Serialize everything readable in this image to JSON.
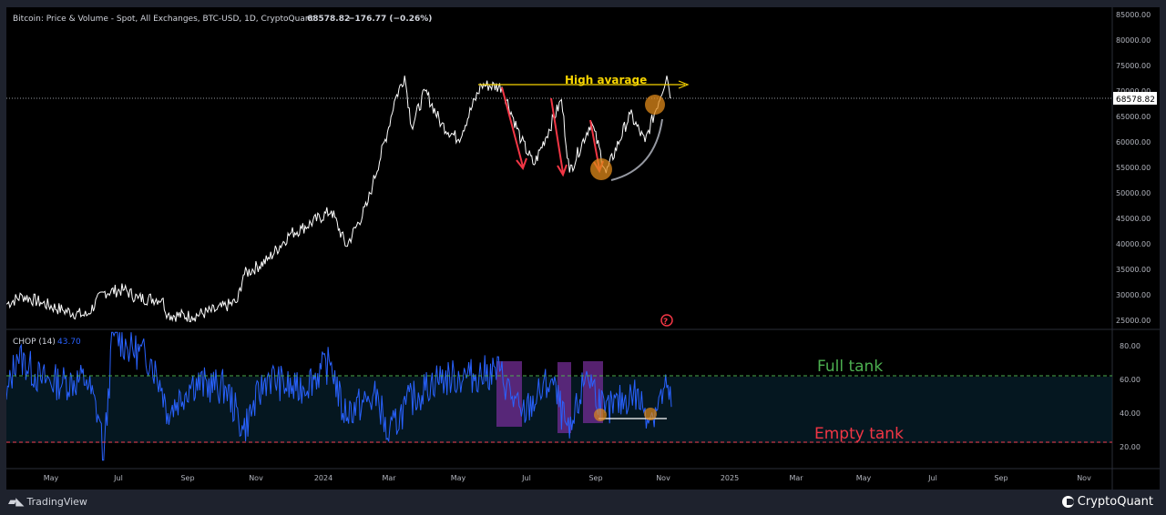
{
  "header": {
    "title": "Bitcoin: Price & Volume - Spot, All Exchanges, BTC-USD, 1D, CryptoQuant",
    "last_price": "68578.82",
    "change": "−176.77 (−0.26%)"
  },
  "price_tag": "68578.82",
  "indicator": {
    "name": "CHOP (14)",
    "value": "43.70"
  },
  "annotations": {
    "high_average": "High avarage",
    "full_tank": "Full tank",
    "empty_tank": "Empty tank"
  },
  "footer": {
    "tradingview": "TradingView",
    "cryptoquant": "CryptoQuant"
  },
  "colors": {
    "price_line": "#ffffff",
    "chop_line": "#2962ff",
    "high_avg": "#f5d300",
    "full_tank": "#4caf50",
    "empty_tank": "#f23645",
    "arrow_red": "#f23645",
    "highlight_box": "#7b2f9e",
    "circle": "#e08a1a"
  },
  "chart_data": [
    {
      "type": "line",
      "title": "Bitcoin: Price & Volume - Spot, All Exchanges, BTC-USD, 1D, CryptoQuant",
      "x_ticks": [
        "May",
        "Jul",
        "Sep",
        "Nov",
        "2024",
        "Mar",
        "May",
        "Jul",
        "Sep",
        "Nov",
        "2025",
        "Mar",
        "May",
        "Jul",
        "Sep",
        "Nov"
      ],
      "y_ticks": [
        "85000.00",
        "80000.00",
        "75000.00",
        "70000.00",
        "65000.00",
        "60000.00",
        "55000.00",
        "50000.00",
        "45000.00",
        "40000.00",
        "35000.00",
        "30000.00",
        "25000.00"
      ],
      "ylim": [
        25000,
        85000
      ],
      "series": [
        {
          "values": [
            [
              "2023-04-01",
              28200
            ],
            [
              "2023-04-15",
              29800
            ],
            [
              "2023-05-01",
              28500
            ],
            [
              "2023-05-20",
              27000
            ],
            [
              "2023-06-10",
              25900
            ],
            [
              "2023-06-25",
              30500
            ],
            [
              "2023-07-13",
              31000
            ],
            [
              "2023-07-25",
              29300
            ],
            [
              "2023-08-15",
              29200
            ],
            [
              "2023-08-20",
              26100
            ],
            [
              "2023-09-10",
              25800
            ],
            [
              "2023-10-01",
              27000
            ],
            [
              "2023-10-20",
              28700
            ],
            [
              "2023-10-25",
              33900
            ],
            [
              "2023-11-15",
              36800
            ],
            [
              "2023-12-05",
              42000
            ],
            [
              "2023-12-15",
              43000
            ],
            [
              "2024-01-10",
              46500
            ],
            [
              "2024-01-23",
              39500
            ],
            [
              "2024-02-10",
              47500
            ],
            [
              "2024-02-15",
              51700
            ],
            [
              "2024-02-28",
              62000
            ],
            [
              "2024-03-05",
              68000
            ],
            [
              "2024-03-14",
              73000
            ],
            [
              "2024-03-20",
              63000
            ],
            [
              "2024-04-01",
              70000
            ],
            [
              "2024-04-15",
              63500
            ],
            [
              "2024-04-30",
              60500
            ],
            [
              "2024-05-20",
              71200
            ],
            [
              "2024-06-07",
              70800
            ],
            [
              "2024-06-24",
              60300
            ],
            [
              "2024-07-05",
              55500
            ],
            [
              "2024-07-29",
              68300
            ],
            [
              "2024-08-05",
              54000
            ],
            [
              "2024-08-24",
              64000
            ],
            [
              "2024-09-06",
              53900
            ],
            [
              "2024-09-27",
              65500
            ],
            [
              "2024-10-10",
              60000
            ],
            [
              "2024-10-29",
              73000
            ],
            [
              "2024-11-02",
              68578.82
            ]
          ]
        }
      ],
      "horizontal_lines": [
        {
          "label": "High avarage",
          "y": 71500,
          "x_start": "2024-05-15",
          "x_end": "2024-11-15"
        }
      ],
      "annotations": [
        "High avarage"
      ]
    },
    {
      "type": "line",
      "title": "CHOP (14)",
      "y_ticks": [
        "80.00",
        "60.00",
        "40.00",
        "20.00"
      ],
      "ylim": [
        10,
        90
      ],
      "levels": {
        "upper": 61.8,
        "lower": 38.2,
        "bottom": 23.6
      },
      "series": [
        {
          "values": [
            [
              "2023-04-01",
              48
            ],
            [
              "2023-04-10",
              75
            ],
            [
              "2023-05-01",
              60
            ],
            [
              "2023-05-20",
              58
            ],
            [
              "2023-06-10",
              60
            ],
            [
              "2023-06-22",
              35
            ],
            [
              "2023-06-25",
              12
            ],
            [
              "2023-07-03",
              88
            ],
            [
              "2023-07-15",
              80
            ],
            [
              "2023-08-05",
              72
            ],
            [
              "2023-08-15",
              55
            ],
            [
              "2023-08-20",
              40
            ],
            [
              "2023-09-10",
              58
            ],
            [
              "2023-10-10",
              55
            ],
            [
              "2023-10-25",
              30
            ],
            [
              "2023-11-15",
              62
            ],
            [
              "2023-12-10",
              53
            ],
            [
              "2024-01-10",
              70
            ],
            [
              "2024-01-20",
              40
            ],
            [
              "2024-02-20",
              50
            ],
            [
              "2024-02-28",
              25
            ],
            [
              "2024-03-15",
              45
            ],
            [
              "2024-04-10",
              60
            ],
            [
              "2024-05-10",
              62
            ],
            [
              "2024-06-05",
              65
            ],
            [
              "2024-06-24",
              38
            ],
            [
              "2024-07-20",
              60
            ],
            [
              "2024-08-05",
              25
            ],
            [
              "2024-08-20",
              65
            ],
            [
              "2024-09-05",
              40
            ],
            [
              "2024-09-30",
              52
            ],
            [
              "2024-10-15",
              38
            ],
            [
              "2024-10-29",
              55
            ],
            [
              "2024-11-02",
              43.7
            ]
          ]
        }
      ],
      "annotations": [
        "Full tank",
        "Empty tank"
      ]
    }
  ]
}
